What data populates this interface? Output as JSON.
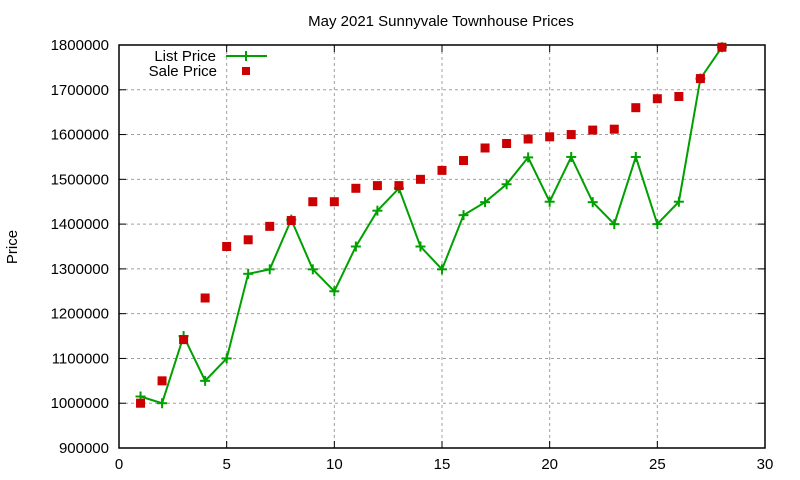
{
  "chart_data": {
    "type": "line",
    "title": "May 2021 Sunnyvale Townhouse Prices",
    "xlabel": "",
    "ylabel": "Price",
    "xlim": [
      0,
      30
    ],
    "ylim": [
      900000,
      1800000
    ],
    "x_ticks": [
      0,
      5,
      10,
      15,
      20,
      25,
      30
    ],
    "y_ticks": [
      900000,
      1000000,
      1100000,
      1200000,
      1300000,
      1400000,
      1500000,
      1600000,
      1700000,
      1800000
    ],
    "grid": true,
    "legend_position": "top-left",
    "x": [
      1,
      2,
      3,
      4,
      5,
      6,
      7,
      8,
      9,
      10,
      11,
      12,
      13,
      14,
      15,
      16,
      17,
      18,
      19,
      20,
      21,
      22,
      23,
      24,
      25,
      26,
      27,
      28
    ],
    "series": [
      {
        "name": "List Price",
        "style": "linespoints",
        "marker": "plus",
        "color": "#00a000",
        "values": [
          1015000,
          1000000,
          1150000,
          1050000,
          1100000,
          1289000,
          1299000,
          1410000,
          1299000,
          1250000,
          1350000,
          1430000,
          1480000,
          1350000,
          1299000,
          1420000,
          1449000,
          1489000,
          1549000,
          1450000,
          1550000,
          1449000,
          1400000,
          1550000,
          1400000,
          1450000,
          1725000,
          1795000
        ]
      },
      {
        "name": "Sale Price",
        "style": "points",
        "marker": "square",
        "color": "#cc0000",
        "values": [
          1000000,
          1050000,
          1142000,
          1235000,
          1350000,
          1365000,
          1395000,
          1408000,
          1450000,
          1450000,
          1480000,
          1486000,
          1486000,
          1500000,
          1520000,
          1542000,
          1570000,
          1580000,
          1590000,
          1595000,
          1600000,
          1610000,
          1612000,
          1660000,
          1680000,
          1685000,
          1725000,
          1795000
        ]
      }
    ]
  }
}
